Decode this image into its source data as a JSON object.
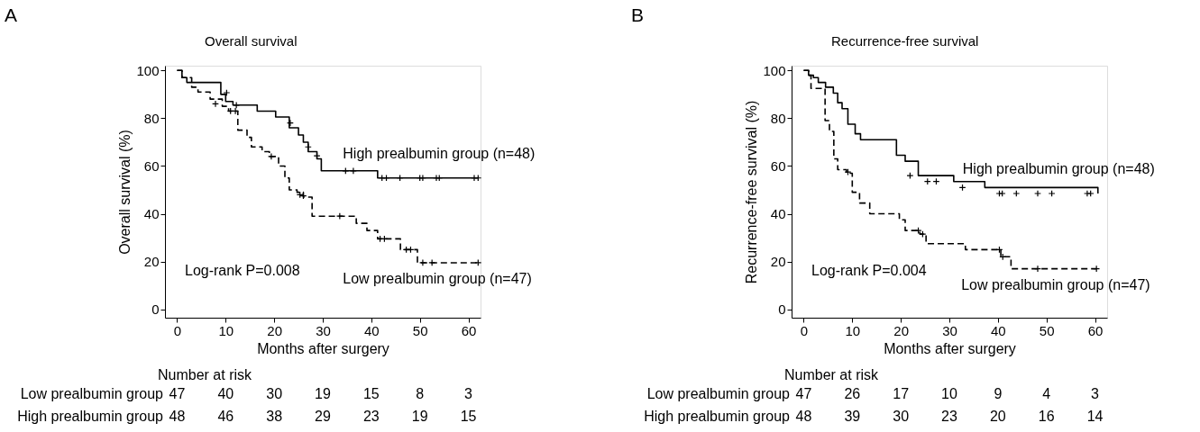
{
  "chart_data": [
    {
      "type": "step",
      "title": "Overall survival",
      "xlabel": "Months after surgery",
      "ylabel": "Overall survival (%)",
      "xlim": [
        -2.5,
        62.5
      ],
      "xticks": [
        0,
        10,
        20,
        30,
        40,
        50,
        60
      ],
      "ylim": [
        -3.5,
        102
      ],
      "yticks": [
        0,
        20,
        40,
        60,
        80,
        100
      ],
      "series": [
        {
          "name": "High prealbumin group (n=48)",
          "color": "#000000",
          "line_style": "solid",
          "x": [
            0,
            1,
            2,
            9,
            10,
            11.5,
            16.5,
            20.3,
            23.1,
            25,
            26,
            27,
            28.8,
            29.7,
            41.3,
            62
          ],
          "values": [
            100,
            97,
            95,
            90,
            87,
            85.5,
            83,
            80.5,
            76,
            73,
            70,
            66,
            63,
            58,
            55,
            55
          ]
        },
        {
          "name": "Low prealbumin group (n=47)",
          "color": "#000000",
          "line_style": "dashed",
          "x": [
            0,
            1,
            3,
            4.3,
            6.8,
            9.3,
            10.6,
            12.5,
            14.4,
            15.3,
            17.5,
            19,
            20.9,
            22.2,
            23.1,
            24.7,
            26,
            27.8,
            36.9,
            39.1,
            41.3,
            46,
            49.5,
            62
          ],
          "values": [
            100,
            97,
            93,
            91,
            88,
            85,
            83,
            75,
            72,
            68,
            66,
            64,
            60,
            55,
            50,
            49,
            47,
            39,
            36,
            33,
            29.5,
            25,
            19.5,
            19.5
          ]
        },
        {
          "type": "scatter",
          "marker": "cross",
          "color": "#000000",
          "x": [
            10.2,
            12.2,
            23.3,
            27,
            28.8,
            34.7,
            36.3,
            42.2,
            43.1,
            45.9,
            50,
            50.6,
            53.4,
            54,
            61.2,
            62
          ],
          "values": [
            90.7,
            85.5,
            78,
            68,
            64.3,
            58,
            58,
            55,
            55,
            55,
            55,
            55,
            55,
            55,
            55,
            55
          ]
        },
        {
          "type": "scatter",
          "marker": "cross",
          "color": "#000000",
          "x": [
            7.9,
            11,
            12,
            19.4,
            25.3,
            26,
            33.5,
            41.8,
            42.7,
            47.2,
            48.1,
            50.6,
            52.5,
            62
          ],
          "values": [
            86,
            83,
            83,
            64,
            48,
            47.5,
            39,
            29.5,
            29.5,
            25,
            25,
            19.5,
            19.5,
            19.5
          ]
        }
      ],
      "annotations": [
        "A",
        "Log-rank P=0.008",
        "Number at risk",
        "Low prealbumin group",
        "47",
        "40",
        "30",
        "19",
        "15",
        "8",
        "3",
        "High prealbumin group",
        "48",
        "46",
        "38",
        "29",
        "23",
        "19",
        "15"
      ]
    },
    {
      "type": "step",
      "title": "Recurrence-free survival",
      "xlabel": "Months after surgery",
      "ylabel": "Recurrence-free survival (%)",
      "xlim": [
        -2.5,
        62.5
      ],
      "xticks": [
        0,
        10,
        20,
        30,
        40,
        50,
        60
      ],
      "ylim": [
        -3.5,
        102
      ],
      "yticks": [
        0,
        20,
        40,
        60,
        80,
        100
      ],
      "series": [
        {
          "name": "High prealbumin group (n=48)",
          "color": "#000000",
          "line_style": "solid",
          "x": [
            0,
            1,
            2,
            3,
            4.5,
            6.1,
            7,
            7.9,
            9.1,
            10.6,
            11.7,
            19.1,
            20.9,
            23.6,
            30.9,
            37.3,
            60.6
          ],
          "values": [
            100,
            98,
            97,
            95,
            93,
            90.5,
            86.5,
            84,
            77.5,
            73.5,
            71,
            64.5,
            62,
            56,
            53.5,
            51,
            48.5
          ]
        },
        {
          "name": "Low prealbumin group (n=47)",
          "color": "#000000",
          "line_style": "dashed",
          "x": [
            0,
            1,
            1.5,
            4.4,
            5.3,
            6.2,
            7,
            8.8,
            10,
            11.5,
            13.6,
            19.7,
            20.9,
            23.9,
            25.2,
            33.3,
            40.6,
            42.7,
            60.3
          ],
          "values": [
            100,
            98,
            92.5,
            79,
            74.5,
            63,
            58.5,
            57,
            49,
            44.5,
            40,
            37.5,
            33,
            31.5,
            27.5,
            25,
            22,
            17,
            17
          ]
        },
        {
          "type": "scatter",
          "marker": "cross",
          "color": "#000000",
          "x": [
            21.9,
            25.5,
            27.3,
            32.7,
            40.3,
            40.9,
            43.8,
            48.2,
            51.1,
            58.4,
            59.1
          ],
          "values": [
            56,
            53.5,
            53.5,
            51,
            48.5,
            48.5,
            48.5,
            48.5,
            48.5,
            48.5,
            48.5
          ]
        },
        {
          "type": "scatter",
          "marker": "cross",
          "color": "#000000",
          "x": [
            9.1,
            23.6,
            24.5,
            40.3,
            41,
            48.2,
            60.3
          ],
          "values": [
            57.5,
            33,
            31.5,
            25,
            22,
            17,
            17
          ]
        }
      ],
      "annotations": [
        "B",
        "Log-rank P=0.004",
        "Number at risk",
        "Low prealbumin group",
        "47",
        "26",
        "17",
        "10",
        "9",
        "4",
        "3",
        "High prealbumin group",
        "48",
        "39",
        "30",
        "23",
        "20",
        "16",
        "14"
      ]
    }
  ]
}
